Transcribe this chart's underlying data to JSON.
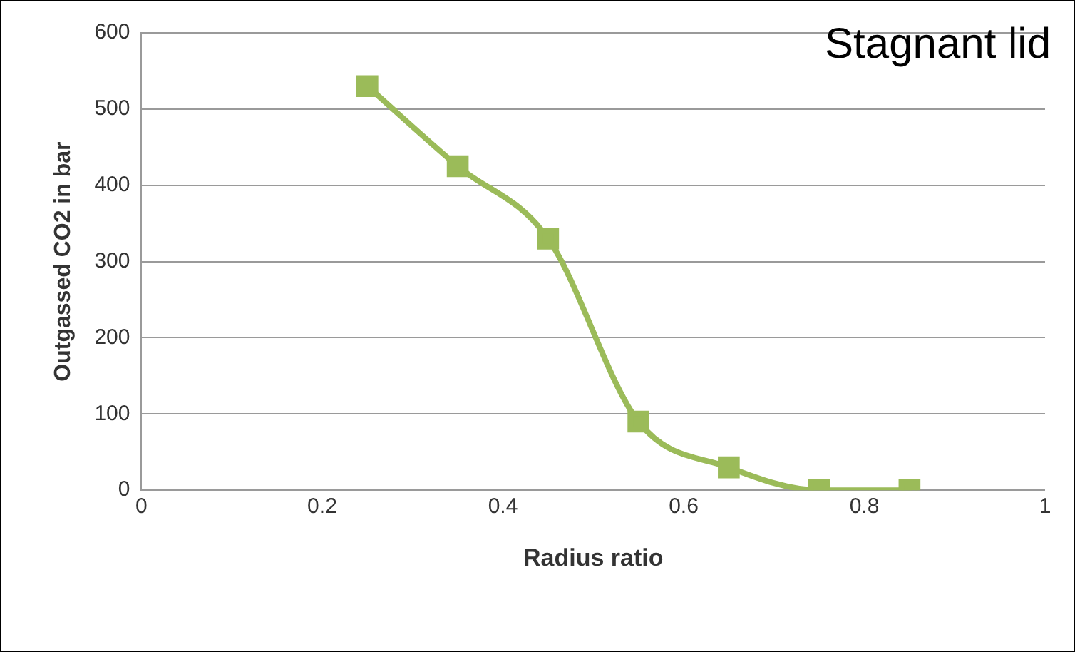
{
  "chart_data": {
    "type": "line",
    "xlabel": "Radius ratio",
    "ylabel": "Outgassed CO2 in bar",
    "annotations": [
      "Stagnant lid"
    ],
    "x": [
      0.25,
      0.35,
      0.45,
      0.55,
      0.65,
      0.75,
      0.85
    ],
    "series": [
      {
        "color": "#9bbb59",
        "values": [
          530,
          425,
          330,
          90,
          30,
          0,
          0
        ]
      }
    ],
    "xlim": [
      0,
      1
    ],
    "xticks": [
      0,
      0.2,
      0.4,
      0.6,
      0.8,
      1
    ],
    "ylim": [
      0,
      600
    ],
    "yticks": [
      0,
      100,
      200,
      300,
      400,
      500,
      600
    ],
    "grid": "y",
    "legend": false,
    "marker": "square",
    "line_style": "solid"
  }
}
